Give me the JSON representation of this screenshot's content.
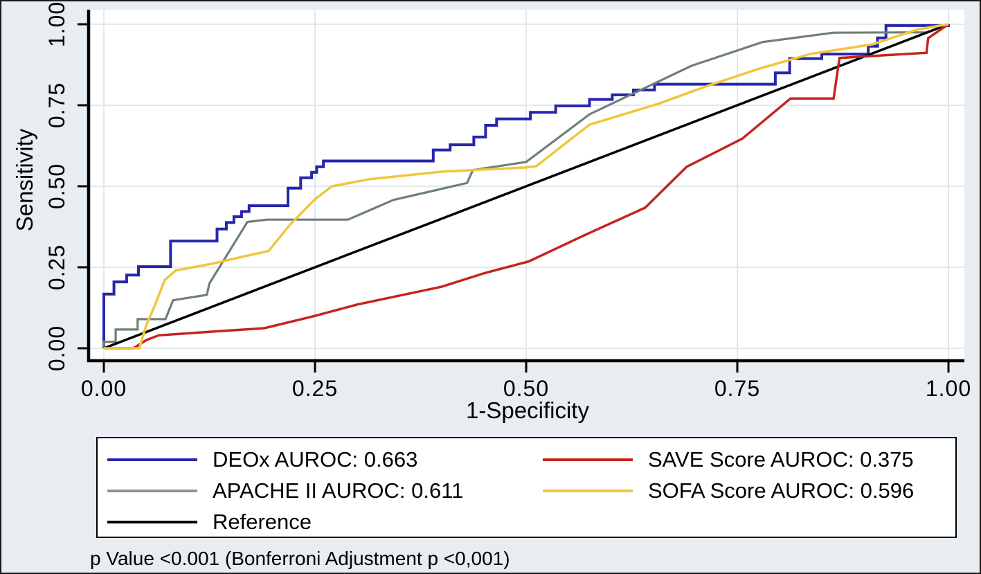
{
  "figure": {
    "background_color": "#e7edf1",
    "plot_background_color": "#ffffff",
    "grid_color": "#e2e8ec",
    "axis_color": "#000000"
  },
  "chart_data": {
    "type": "line",
    "subtype": "roc-curves",
    "title": "",
    "xlabel": "1-Specificity",
    "ylabel": "Sensitivity",
    "xlim": [
      0,
      1
    ],
    "ylim": [
      0,
      1
    ],
    "grid": true,
    "legend_position": "bottom",
    "x_ticks": [
      {
        "value": 0.0,
        "label": "0.00"
      },
      {
        "value": 0.25,
        "label": "0.25"
      },
      {
        "value": 0.5,
        "label": "0.50"
      },
      {
        "value": 0.75,
        "label": "0.75"
      },
      {
        "value": 1.0,
        "label": "1.00"
      }
    ],
    "y_ticks": [
      {
        "value": 0.0,
        "label": "0.00"
      },
      {
        "value": 0.25,
        "label": "0.25"
      },
      {
        "value": 0.5,
        "label": "0.50"
      },
      {
        "value": 0.75,
        "label": "0.75"
      },
      {
        "value": 1.0,
        "label": "1.00"
      }
    ],
    "series": [
      {
        "name": "DEOx",
        "auroc": 0.663,
        "legend_label": "DEOx AUROC: 0.663",
        "color": "#2626ab",
        "line_width": 4,
        "points": [
          [
            0,
            0
          ],
          [
            0,
            0.167
          ],
          [
            0.012,
            0.167
          ],
          [
            0.012,
            0.205
          ],
          [
            0.027,
            0.205
          ],
          [
            0.027,
            0.226
          ],
          [
            0.041,
            0.226
          ],
          [
            0.041,
            0.252
          ],
          [
            0.079,
            0.252
          ],
          [
            0.079,
            0.331
          ],
          [
            0.134,
            0.331
          ],
          [
            0.134,
            0.368
          ],
          [
            0.145,
            0.368
          ],
          [
            0.145,
            0.388
          ],
          [
            0.154,
            0.388
          ],
          [
            0.154,
            0.406
          ],
          [
            0.163,
            0.406
          ],
          [
            0.163,
            0.422
          ],
          [
            0.172,
            0.422
          ],
          [
            0.172,
            0.44
          ],
          [
            0.218,
            0.44
          ],
          [
            0.218,
            0.494
          ],
          [
            0.233,
            0.494
          ],
          [
            0.233,
            0.526
          ],
          [
            0.246,
            0.526
          ],
          [
            0.246,
            0.543
          ],
          [
            0.252,
            0.543
          ],
          [
            0.252,
            0.56
          ],
          [
            0.26,
            0.56
          ],
          [
            0.26,
            0.578
          ],
          [
            0.39,
            0.578
          ],
          [
            0.39,
            0.612
          ],
          [
            0.41,
            0.612
          ],
          [
            0.41,
            0.628
          ],
          [
            0.438,
            0.628
          ],
          [
            0.438,
            0.652
          ],
          [
            0.452,
            0.652
          ],
          [
            0.452,
            0.688
          ],
          [
            0.465,
            0.688
          ],
          [
            0.465,
            0.708
          ],
          [
            0.505,
            0.708
          ],
          [
            0.505,
            0.728
          ],
          [
            0.535,
            0.728
          ],
          [
            0.535,
            0.748
          ],
          [
            0.575,
            0.748
          ],
          [
            0.575,
            0.768
          ],
          [
            0.602,
            0.768
          ],
          [
            0.602,
            0.782
          ],
          [
            0.627,
            0.782
          ],
          [
            0.627,
            0.797
          ],
          [
            0.652,
            0.797
          ],
          [
            0.652,
            0.815
          ],
          [
            0.795,
            0.815
          ],
          [
            0.795,
            0.85
          ],
          [
            0.812,
            0.85
          ],
          [
            0.812,
            0.894
          ],
          [
            0.85,
            0.894
          ],
          [
            0.85,
            0.908
          ],
          [
            0.905,
            0.908
          ],
          [
            0.905,
            0.932
          ],
          [
            0.916,
            0.932
          ],
          [
            0.916,
            0.958
          ],
          [
            0.926,
            0.958
          ],
          [
            0.926,
            0.996
          ],
          [
            1,
            0.996
          ],
          [
            1,
            1
          ]
        ]
      },
      {
        "name": "APACHE II",
        "auroc": 0.611,
        "legend_label": "APACHE II AUROC: 0.611",
        "color": "#6e8077",
        "line_width": 3.2,
        "points": [
          [
            0,
            0
          ],
          [
            0,
            0.02
          ],
          [
            0.014,
            0.02
          ],
          [
            0.014,
            0.058
          ],
          [
            0.04,
            0.058
          ],
          [
            0.04,
            0.09
          ],
          [
            0.073,
            0.09
          ],
          [
            0.082,
            0.148
          ],
          [
            0.122,
            0.165
          ],
          [
            0.125,
            0.2
          ],
          [
            0.17,
            0.39
          ],
          [
            0.193,
            0.397
          ],
          [
            0.289,
            0.397
          ],
          [
            0.343,
            0.458
          ],
          [
            0.43,
            0.51
          ],
          [
            0.437,
            0.55
          ],
          [
            0.5,
            0.575
          ],
          [
            0.575,
            0.722
          ],
          [
            0.696,
            0.872
          ],
          [
            0.78,
            0.945
          ],
          [
            0.864,
            0.974
          ],
          [
            0.975,
            0.975
          ],
          [
            1,
            1
          ]
        ]
      },
      {
        "name": "Reference",
        "auroc": null,
        "legend_label": "Reference",
        "color": "#000000",
        "line_width": 3.5,
        "points": [
          [
            0,
            0
          ],
          [
            1,
            1
          ]
        ]
      },
      {
        "name": "SAVE Score",
        "auroc": 0.375,
        "legend_label": "SAVE Score AUROC: 0.375",
        "color": "#c42420",
        "line_width": 3.5,
        "points": [
          [
            0,
            0
          ],
          [
            0.035,
            0
          ],
          [
            0.05,
            0.025
          ],
          [
            0.065,
            0.04
          ],
          [
            0.12,
            0.05
          ],
          [
            0.19,
            0.062
          ],
          [
            0.25,
            0.1
          ],
          [
            0.3,
            0.135
          ],
          [
            0.4,
            0.19
          ],
          [
            0.452,
            0.233
          ],
          [
            0.503,
            0.268
          ],
          [
            0.57,
            0.35
          ],
          [
            0.641,
            0.434
          ],
          [
            0.69,
            0.56
          ],
          [
            0.756,
            0.647
          ],
          [
            0.813,
            0.771
          ],
          [
            0.864,
            0.771
          ],
          [
            0.871,
            0.896
          ],
          [
            0.974,
            0.912
          ],
          [
            0.976,
            0.957
          ],
          [
            1,
            1
          ]
        ]
      },
      {
        "name": "SOFA Score",
        "auroc": 0.596,
        "legend_label": "SOFA Score AUROC: 0.596",
        "color": "#eec73b",
        "line_width": 3.5,
        "points": [
          [
            0,
            0
          ],
          [
            0.042,
            0
          ],
          [
            0.05,
            0.07
          ],
          [
            0.06,
            0.13
          ],
          [
            0.072,
            0.21
          ],
          [
            0.085,
            0.24
          ],
          [
            0.13,
            0.262
          ],
          [
            0.165,
            0.283
          ],
          [
            0.195,
            0.3
          ],
          [
            0.22,
            0.38
          ],
          [
            0.25,
            0.46
          ],
          [
            0.27,
            0.5
          ],
          [
            0.315,
            0.522
          ],
          [
            0.4,
            0.545
          ],
          [
            0.5,
            0.558
          ],
          [
            0.512,
            0.562
          ],
          [
            0.575,
            0.69
          ],
          [
            0.657,
            0.755
          ],
          [
            0.715,
            0.81
          ],
          [
            0.775,
            0.862
          ],
          [
            0.836,
            0.908
          ],
          [
            0.91,
            0.938
          ],
          [
            0.965,
            0.985
          ],
          [
            1,
            1
          ]
        ]
      }
    ],
    "footnote": "p Value <0.001 (Bonferroni Adjustment p <0,001)"
  },
  "legend": {
    "entries": [
      {
        "label": "DEOx AUROC: 0.663",
        "color": "#2626ab"
      },
      {
        "label": "SAVE Score AUROC: 0.375",
        "color": "#c42420"
      },
      {
        "label": "APACHE II AUROC: 0.611",
        "color": "#8b968f"
      },
      {
        "label": "SOFA Score AUROC: 0.596",
        "color": "#eec73b"
      },
      {
        "label": "Reference",
        "color": "#000000"
      }
    ]
  }
}
